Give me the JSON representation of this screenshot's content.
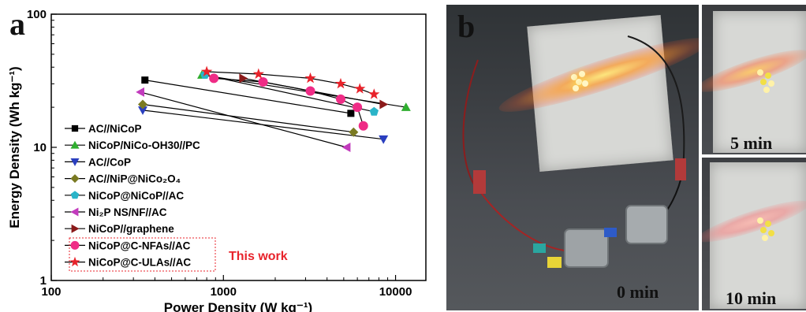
{
  "panel_a_label": "a",
  "panel_b_label": "b",
  "annotation": "This work",
  "colors": {
    "annotation": "#e8232b",
    "box": "#e8232b"
  },
  "chart_data": {
    "type": "scatter",
    "xlabel": "Power Density (W kg⁻¹)",
    "ylabel": "Energy Density (Wh kg⁻¹)",
    "x_scale": "log",
    "y_scale": "log",
    "xlim": [
      100,
      15000
    ],
    "ylim": [
      1,
      100
    ],
    "x_ticks": [
      "100",
      "1000",
      "10000"
    ],
    "y_ticks": [
      "1",
      "10",
      "100"
    ],
    "legend_position": "left",
    "series": [
      {
        "name": "AC//NiCoP",
        "color": "#000000",
        "marker": "square",
        "points": [
          [
            350,
            32
          ],
          [
            5500,
            18
          ]
        ]
      },
      {
        "name": "NiCoP/NiCo-OH30//PC",
        "color": "#2fae2f",
        "marker": "triangle-up",
        "points": [
          [
            750,
            35
          ],
          [
            11500,
            20
          ]
        ]
      },
      {
        "name": "AC//CoP",
        "color": "#2a3fbf",
        "marker": "triangle-down",
        "points": [
          [
            340,
            19
          ],
          [
            8500,
            11.5
          ]
        ]
      },
      {
        "name": "AC//NiP@NiCo₂O₄",
        "color": "#7a7a22",
        "marker": "diamond",
        "points": [
          [
            340,
            21
          ],
          [
            5700,
            13
          ]
        ]
      },
      {
        "name": "NiCoP@NiCoP//AC",
        "color": "#2ab4c8",
        "marker": "pentagon",
        "points": [
          [
            780,
            35
          ],
          [
            7500,
            18.5
          ]
        ]
      },
      {
        "name": "Ni₂P NS/NF//AC",
        "color": "#c23bbd",
        "marker": "triangle-left",
        "points": [
          [
            330,
            26
          ],
          [
            5200,
            10
          ]
        ]
      },
      {
        "name": "NiCoP//graphene",
        "color": "#8b1a1a",
        "marker": "triangle-right",
        "points": [
          [
            1300,
            33
          ],
          [
            8500,
            21
          ]
        ]
      },
      {
        "name": "NiCoP@C-NFAs//AC",
        "color": "#ef2c86",
        "marker": "circle",
        "points": [
          [
            880,
            33
          ],
          [
            1700,
            31
          ],
          [
            3200,
            26.5
          ],
          [
            4800,
            23
          ],
          [
            6000,
            20
          ],
          [
            6500,
            14.5
          ]
        ]
      },
      {
        "name": "NiCoP@C-ULAs//AC",
        "color": "#e8232b",
        "marker": "star",
        "points": [
          [
            800,
            37
          ],
          [
            1600,
            35.5
          ],
          [
            3200,
            33
          ],
          [
            4800,
            30
          ],
          [
            6200,
            27.5
          ],
          [
            7500,
            25
          ]
        ]
      }
    ]
  },
  "photos": {
    "time_labels": [
      "0 min",
      "5 min",
      "10 min"
    ]
  }
}
